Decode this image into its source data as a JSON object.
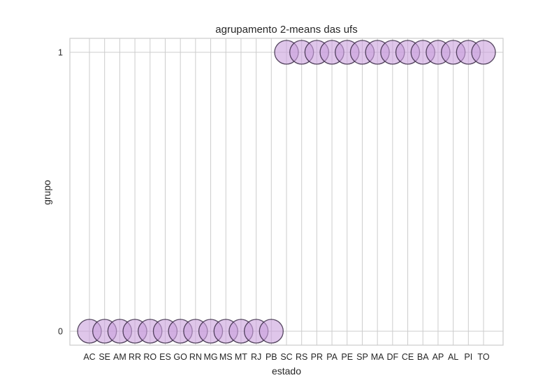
{
  "chart_data": {
    "type": "scatter",
    "title": "agrupamento 2-means das ufs",
    "xlabel": "estado",
    "ylabel": "grupo",
    "categories": [
      "AC",
      "SE",
      "AM",
      "RR",
      "RO",
      "ES",
      "GO",
      "RN",
      "MG",
      "MS",
      "MT",
      "RJ",
      "PB",
      "SC",
      "RS",
      "PR",
      "PA",
      "PE",
      "SP",
      "MA",
      "DF",
      "CE",
      "BA",
      "AP",
      "AL",
      "PI",
      "TO"
    ],
    "values": [
      0,
      0,
      0,
      0,
      0,
      0,
      0,
      0,
      0,
      0,
      0,
      0,
      0,
      1,
      1,
      1,
      1,
      1,
      1,
      1,
      1,
      1,
      1,
      1,
      1,
      1,
      1
    ],
    "y_ticks": [
      "0",
      "1"
    ],
    "y_tick_values": [
      0,
      1
    ],
    "ylim": [
      -0.05,
      1.05
    ],
    "grid": true,
    "legend": "none",
    "colors": {
      "marker_fill": "#c9a0dc",
      "marker_edge": "#3a2a45",
      "grid": "#cccccc",
      "axes_edge": "#cccccc",
      "text": "#262626"
    }
  }
}
